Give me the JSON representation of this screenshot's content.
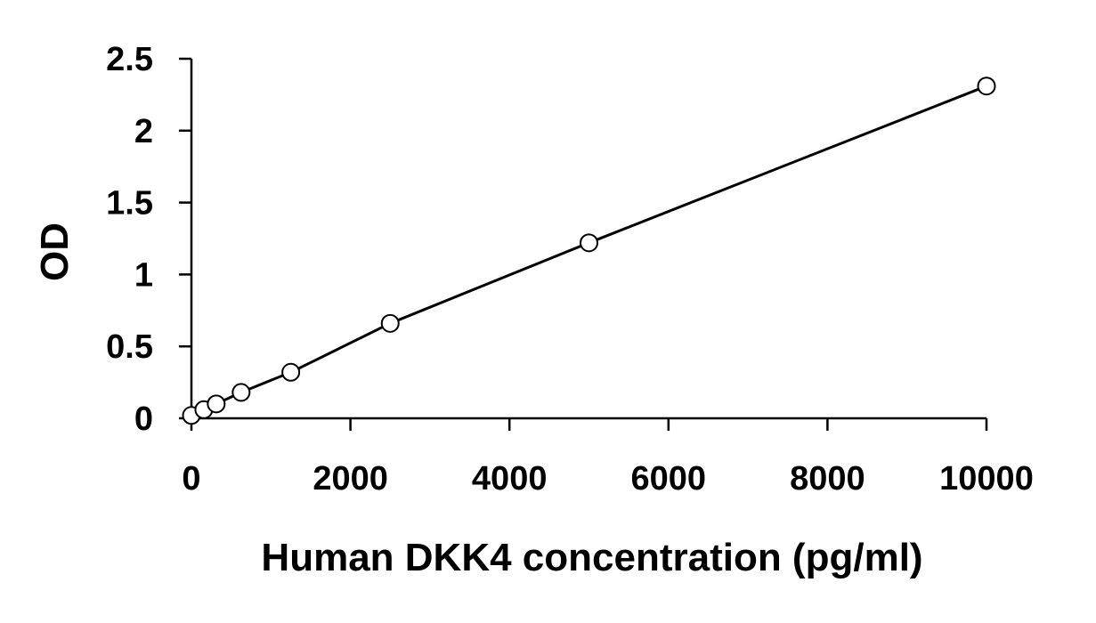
{
  "chart_data": {
    "type": "scatter",
    "title": "",
    "xlabel": "Human DKK4 concentration (pg/ml)",
    "ylabel": "OD",
    "xlim": [
      0,
      10000
    ],
    "ylim": [
      0,
      2.5
    ],
    "x_ticks": [
      0,
      2000,
      4000,
      6000,
      8000,
      10000
    ],
    "x_tick_labels": [
      "0",
      "2000",
      "4000",
      "6000",
      "8000",
      "10000"
    ],
    "y_ticks": [
      0,
      0.5,
      1,
      1.5,
      2,
      2.5
    ],
    "y_tick_labels": [
      "0",
      "0.5",
      "1",
      "1.5",
      "2",
      "2.5"
    ],
    "grid": false,
    "legend": "none",
    "series": [
      {
        "x": [
          0,
          156,
          312,
          625,
          1250,
          2500,
          5000,
          10000
        ],
        "y": [
          0.02,
          0.06,
          0.1,
          0.18,
          0.32,
          0.66,
          1.22,
          2.31
        ],
        "marker": "open-circle",
        "trendline": "smooth-curve"
      }
    ],
    "colors": {
      "marker_stroke": "#000000",
      "marker_fill": "#ffffff",
      "line": "#000000",
      "axis": "#000000"
    }
  }
}
